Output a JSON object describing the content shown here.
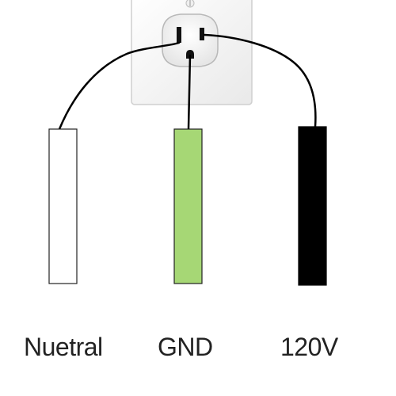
{
  "diagram": {
    "outlet": {
      "plate_color": "#f7f7f7",
      "plate_border": "#cfcfcf",
      "receptacle_color": "#fafafa",
      "slot_color": "#111111"
    },
    "wires": [
      {
        "key": "neutral",
        "label": "Nuetral",
        "color": "#ffffff",
        "outline": "#222222"
      },
      {
        "key": "ground",
        "label": "GND",
        "color": "#a6d775",
        "outline": "#222222"
      },
      {
        "key": "hot",
        "label": "120V",
        "color": "#000000",
        "outline": "#000000"
      }
    ],
    "lead_color": "#000000"
  }
}
